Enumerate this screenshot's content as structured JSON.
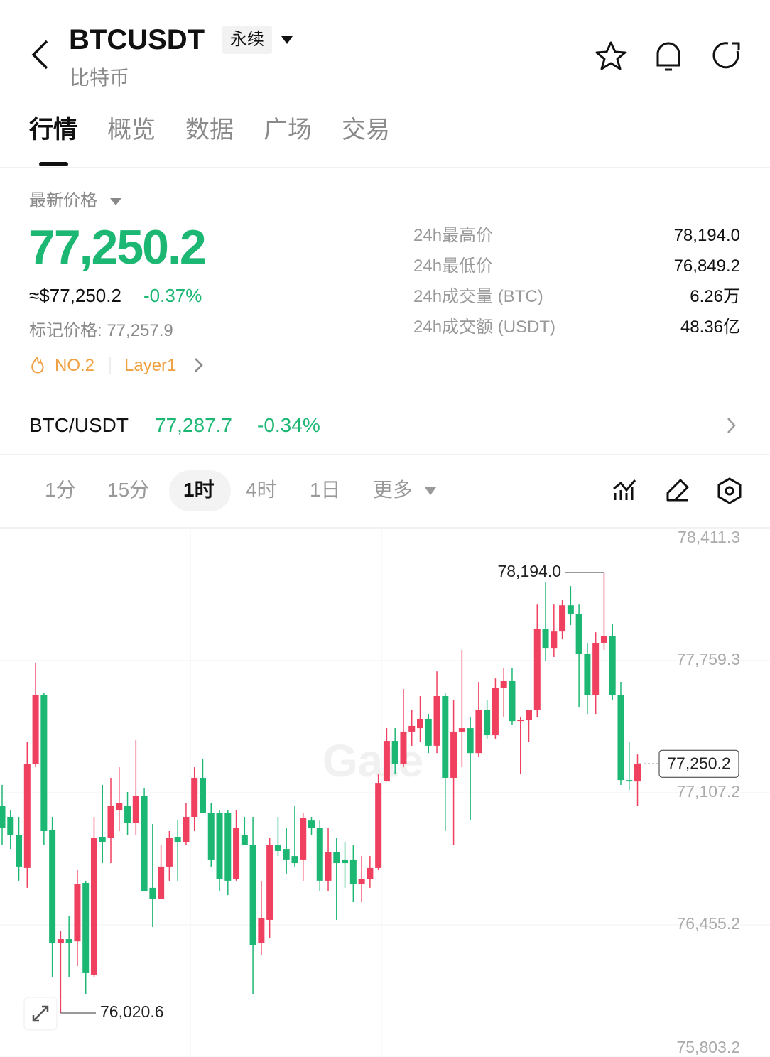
{
  "header": {
    "symbol": "BTCUSDT",
    "contract_type": "永续",
    "name": "比特币"
  },
  "tabs": [
    "行情",
    "概览",
    "数据",
    "广场",
    "交易"
  ],
  "price": {
    "label": "最新价格",
    "last": "77,250.2",
    "usd": "≈$77,250.2",
    "change": "-0.37%",
    "mark": "标记价格: 77,257.9",
    "rank": "NO.2",
    "sector": "Layer1"
  },
  "stats": {
    "labels": [
      "24h最高价",
      "24h最低价",
      "24h成交量 (BTC)",
      "24h成交额 (USDT)"
    ],
    "values": [
      "78,194.0",
      "76,849.2",
      "6.26万",
      "48.36亿"
    ]
  },
  "spot": {
    "pair": "BTC/USDT",
    "price": "77,287.7",
    "change": "-0.34%"
  },
  "timeframes": {
    "items": [
      "1分",
      "15分",
      "1时",
      "4时",
      "1日",
      "更多"
    ]
  },
  "chart_data": {
    "type": "candlestick",
    "watermark": "Gate",
    "up_color": "#f0405f",
    "down_color": "#1db774",
    "ylim": [
      75803.2,
      78411.3
    ],
    "yticks": [
      {
        "value": 78411.3,
        "label": "78,411.3"
      },
      {
        "value": 77759.3,
        "label": "77,759.3"
      },
      {
        "value": 77107.2,
        "label": "77,107.2"
      },
      {
        "value": 76455.2,
        "label": "76,455.2"
      },
      {
        "value": 75803.2,
        "label": "75,803.2"
      }
    ],
    "grid": true,
    "open": [
      77041,
      76988,
      76900,
      76736,
      77251,
      77591,
      76925,
      76364,
      76385,
      76374,
      76662,
      76210,
      76890,
      76883,
      77023,
      77041,
      76960,
      77093,
      76638,
      76585,
      76743,
      76890,
      76865,
      76988,
      77181,
      77006,
      77006,
      77006,
      76680,
      76900,
      76848,
      76364,
      76480,
      76848,
      76830,
      76795,
      76778,
      76970,
      76935,
      76673,
      76813,
      76778,
      76778,
      76655,
      76680,
      76736,
      77163,
      77363,
      77251,
      77409,
      77426,
      77472,
      77339,
      77584,
      77181,
      77409,
      77426,
      77303,
      77514,
      77391,
      77626,
      77661,
      77461,
      77468,
      77514,
      77917,
      77822,
      77906,
      78032,
      77987,
      77794,
      77591,
      77847,
      77882,
      77591,
      77170,
      77163
    ],
    "high": [
      77146,
      77023,
      76988,
      77356,
      77749,
      77601,
      76988,
      76427,
      76497,
      76725,
      76673,
      76988,
      77146,
      77181,
      77233,
      77111,
      77367,
      77128,
      76953,
      76848,
      76918,
      76970,
      77058,
      77233,
      77275,
      77058,
      77023,
      77023,
      77023,
      76988,
      76988,
      76673,
      76883,
      76988,
      76935,
      77041,
      77006,
      76988,
      76970,
      76935,
      76883,
      76865,
      76848,
      76795,
      76795,
      77198,
      77426,
      77426,
      77619,
      77514,
      77584,
      77496,
      77706,
      77601,
      77566,
      77812,
      77479,
      77654,
      77566,
      77671,
      77724,
      77724,
      77479,
      77514,
      78039,
      78145,
      78039,
      78057,
      78127,
      78039,
      77847,
      77899,
      78194.0,
      77941,
      77654,
      77356,
      77296
    ],
    "low": [
      76848,
      76830,
      76673,
      76638,
      77233,
      76848,
      76199,
      76020.6,
      76199,
      76252,
      76112,
      76199,
      76760,
      76760,
      76918,
      76900,
      76900,
      76620,
      76445,
      76585,
      76673,
      76673,
      76848,
      76918,
      77006,
      76743,
      76620,
      76602,
      76673,
      76848,
      76112,
      76304,
      76392,
      76795,
      76708,
      76743,
      76673,
      76900,
      76620,
      76620,
      76480,
      76638,
      76567,
      76567,
      76638,
      76725,
      77163,
      77198,
      77233,
      77339,
      77356,
      77303,
      77303,
      76918,
      76848,
      77233,
      76970,
      77286,
      77374,
      77374,
      77479,
      77444,
      77198,
      77356,
      77479,
      77759,
      77777,
      77864,
      77934,
      77531,
      77496,
      77496,
      77812,
      77566,
      77146,
      77121,
      77041
    ],
    "close": [
      76935,
      76900,
      76743,
      77251,
      77591,
      76918,
      76364,
      76385,
      76364,
      76655,
      76217,
      76883,
      76865,
      77041,
      77058,
      76960,
      77093,
      76620,
      76585,
      76743,
      76883,
      76865,
      76988,
      77181,
      77006,
      76778,
      76680,
      76673,
      76935,
      76848,
      76357,
      76490,
      76848,
      76820,
      76778,
      76760,
      76981,
      76935,
      76673,
      76813,
      76760,
      76760,
      76655,
      76680,
      76736,
      77156,
      77363,
      77251,
      77409,
      77437,
      77472,
      77339,
      77584,
      77181,
      77409,
      77426,
      77303,
      77514,
      77391,
      77626,
      77661,
      77461,
      77468,
      77514,
      77917,
      77822,
      77906,
      78032,
      77987,
      77794,
      77591,
      77847,
      77882,
      77591,
      77170,
      77163,
      77250.2
    ],
    "annotations": {
      "high": {
        "value": 78194.0,
        "label": "78,194.0"
      },
      "low": {
        "value": 76020.6,
        "label": "76,020.6"
      },
      "last": {
        "value": 77250.2,
        "label": "77,250.2"
      }
    }
  }
}
